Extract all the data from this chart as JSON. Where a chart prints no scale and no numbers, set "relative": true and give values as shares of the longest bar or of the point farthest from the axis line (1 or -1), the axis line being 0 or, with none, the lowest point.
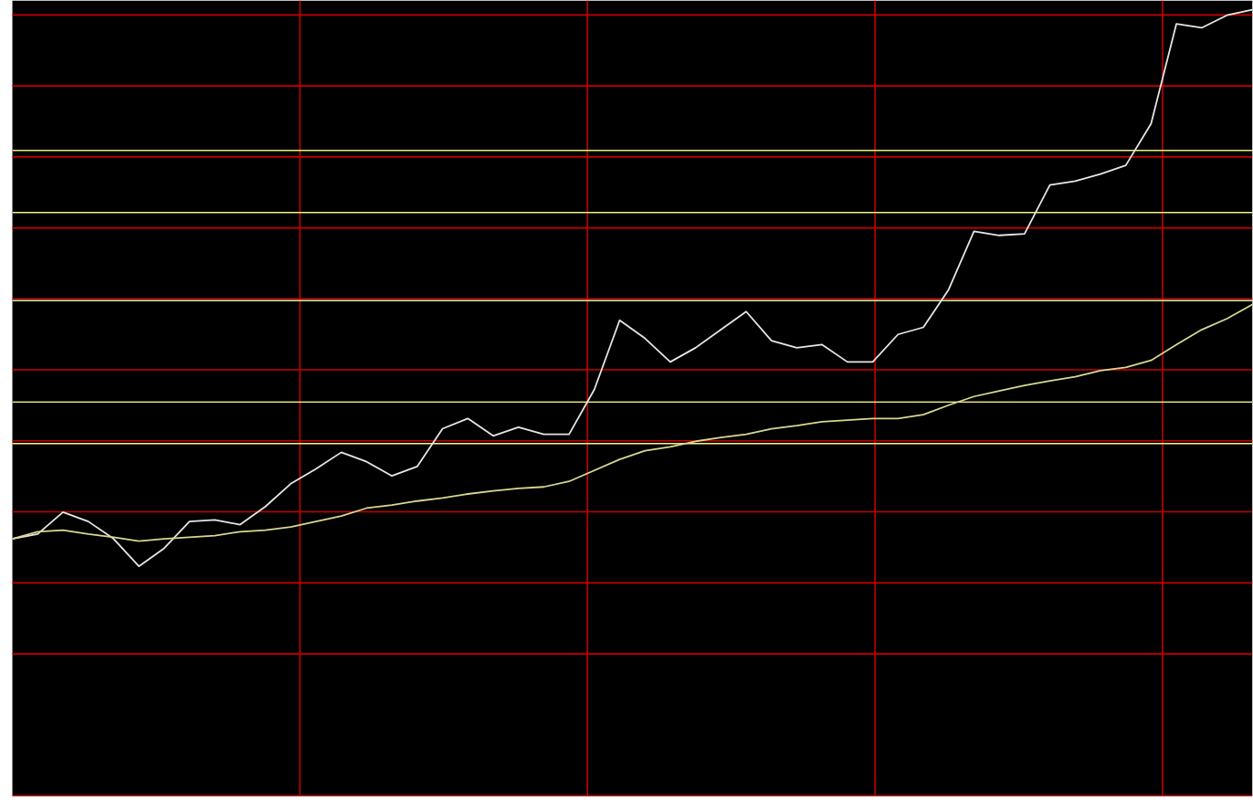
{
  "chart_data": {
    "type": "line",
    "relative": true,
    "grid": true,
    "marker": "none",
    "line_style": "solid",
    "categories": [
      null,
      null,
      null,
      null,
      null,
      null,
      null,
      null,
      null,
      null,
      null,
      null,
      null,
      null,
      null,
      null,
      null,
      null,
      null,
      null,
      null,
      null,
      null,
      null,
      null,
      null,
      null,
      null,
      null,
      null,
      null,
      null,
      null,
      null,
      null,
      null,
      null,
      null,
      null,
      null,
      null,
      null,
      null,
      null,
      null,
      null,
      null,
      null,
      null,
      null
    ],
    "series": [
      {
        "color": "#e6e6e6",
        "values": [
          0.327,
          0.333,
          0.361,
          0.349,
          0.327,
          0.292,
          0.315,
          0.349,
          0.351,
          0.345,
          0.368,
          0.397,
          0.416,
          0.437,
          0.425,
          0.407,
          0.419,
          0.467,
          0.48,
          0.458,
          0.469,
          0.46,
          0.46,
          0.517,
          0.605,
          0.582,
          0.552,
          0.57,
          0.593,
          0.616,
          0.579,
          0.57,
          0.574,
          0.552,
          0.552,
          0.587,
          0.596,
          0.644,
          0.718,
          0.713,
          0.715,
          0.777,
          0.782,
          0.791,
          0.802,
          0.855,
          0.982,
          0.977,
          0.993,
          1
        ]
      },
      {
        "color": "#d8d890",
        "values": [
          0.327,
          0.336,
          0.338,
          0.333,
          0.329,
          0.324,
          0.327,
          0.329,
          0.331,
          0.336,
          0.338,
          0.342,
          0.349,
          0.356,
          0.366,
          0.37,
          0.375,
          0.379,
          0.384,
          0.388,
          0.391,
          0.393,
          0.4,
          0.414,
          0.428,
          0.439,
          0.444,
          0.451,
          0.456,
          0.46,
          0.467,
          0.471,
          0.476,
          0.478,
          0.48,
          0.48,
          0.485,
          0.497,
          0.508,
          0.515,
          0.522,
          0.528,
          0.533,
          0.541,
          0.545,
          0.554,
          0.574,
          0.593,
          0.607,
          0.625
        ]
      }
    ],
    "ref_lines": [
      {
        "axis": "y",
        "value": 0.821,
        "color": "#f0f080"
      },
      {
        "axis": "y",
        "value": 0.742,
        "color": "#f0f080"
      },
      {
        "axis": "y",
        "value": 0.63,
        "color": "#e0f0a0"
      },
      {
        "axis": "y",
        "value": 0.501,
        "color": "#f0f080"
      },
      {
        "axis": "y",
        "value": 0.448,
        "color": "#f0f080"
      }
    ]
  }
}
